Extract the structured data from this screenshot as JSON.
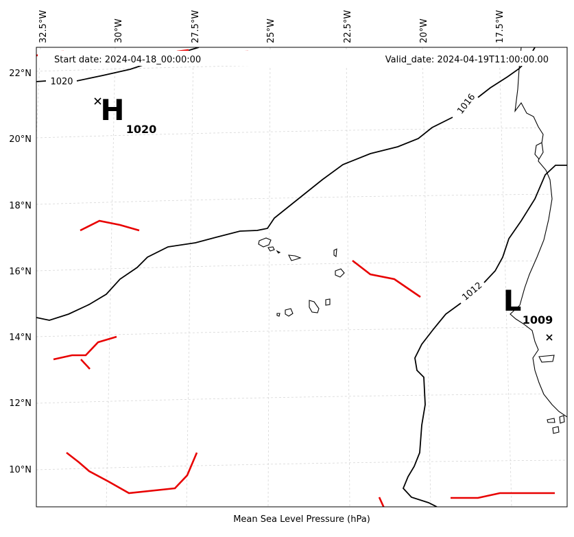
{
  "header": {
    "start_date": "Start date: 2024-04-18_00:00:00",
    "valid_date": "Valid_date: 2024-04-19T11:00:00.00"
  },
  "caption": "Mean Sea Level Pressure (hPa)",
  "axes": {
    "longitude_labels": [
      "32.5°W",
      "30°W",
      "27.5°W",
      "25°W",
      "22.5°W",
      "20°W",
      "17.5°W"
    ],
    "latitude_labels": [
      "22°N",
      "20°N",
      "18°N",
      "16°N",
      "14°N",
      "12°N",
      "10°N"
    ]
  },
  "isobars": [
    {
      "value": "1020",
      "label": "1020"
    },
    {
      "value": "1016",
      "label": "1016"
    },
    {
      "value": "1012",
      "label": "1012"
    }
  ],
  "pressure_centers": [
    {
      "type": "high",
      "letter": "H",
      "value": "1020"
    },
    {
      "type": "low",
      "letter": "L",
      "value": "1009"
    }
  ],
  "colors": {
    "isobar": "#000000",
    "front": "#e80000",
    "grid": "#d6d6d6"
  },
  "icons": {
    "center_marker": "x-mark-icon"
  }
}
